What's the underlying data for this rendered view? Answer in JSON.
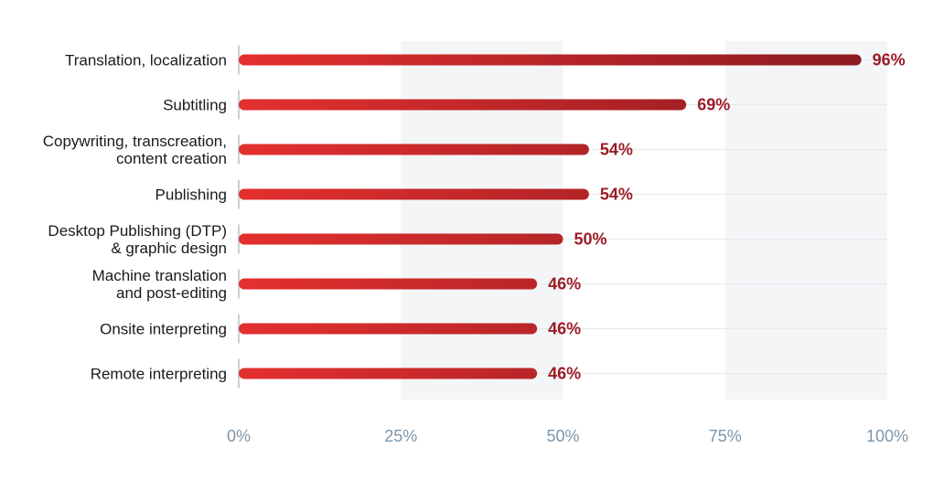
{
  "chart_data": {
    "type": "bar",
    "orientation": "horizontal",
    "categories": [
      "Translation, localization",
      "Subtitling",
      "Copywriting, transcreation,\ncontent creation",
      "Publishing",
      "Desktop Publishing (DTP)\n& graphic design",
      "Machine translation\nand post-editing",
      "Onsite interpreting",
      "Remote interpreting"
    ],
    "values": [
      96,
      69,
      54,
      54,
      50,
      46,
      46,
      46
    ],
    "value_labels": [
      "96%",
      "69%",
      "54%",
      "54%",
      "50%",
      "46%",
      "46%",
      "46%"
    ],
    "color": "#e3302f",
    "xlim": [
      0,
      100
    ],
    "xticks": [
      {
        "value": 0,
        "label": "0%"
      },
      {
        "value": 25,
        "label": "25%"
      },
      {
        "value": 50,
        "label": "50%"
      },
      {
        "value": 75,
        "label": "75%"
      },
      {
        "value": 100,
        "label": "100%"
      }
    ],
    "grid": true
  }
}
